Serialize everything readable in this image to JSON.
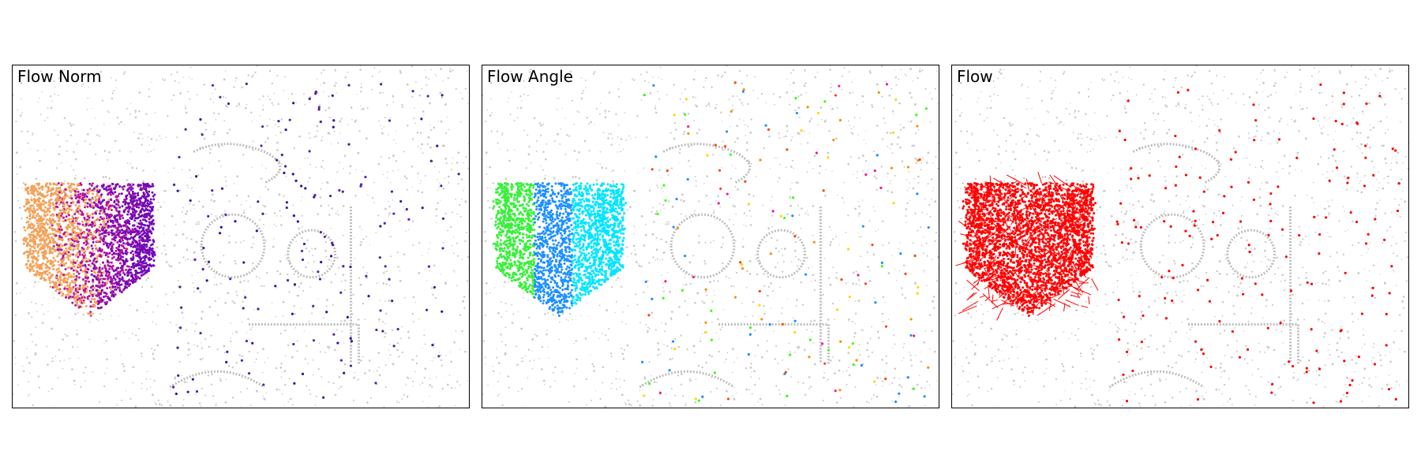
{
  "panels": [
    {
      "title": "Flow Norm",
      "mode": "norm"
    },
    {
      "title": "Flow Angle",
      "mode": "angle"
    },
    {
      "title": "Flow",
      "mode": "vector"
    }
  ],
  "colors": {
    "background_events": "#c8c8c8",
    "norm_low": "#3a0ca3",
    "norm_high": "#f4a259",
    "vector": "#ff0000"
  }
}
